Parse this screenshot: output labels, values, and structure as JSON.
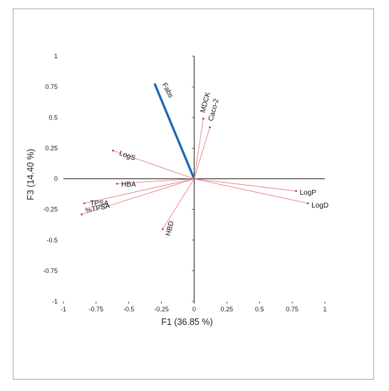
{
  "chart_data": {
    "type": "scatter",
    "subtype": "biplot-vectors",
    "title": "",
    "xlabel": "F1 (36.85 %)",
    "ylabel": "F3 (14.40 %)",
    "xlim": [
      -1,
      1
    ],
    "ylim": [
      -1,
      1
    ],
    "xticks": [
      "-1",
      "-0.75",
      "-0.5",
      "-0.25",
      "0",
      "0.25",
      "0.5",
      "0.75",
      "1"
    ],
    "yticks": [
      "1",
      "0.75",
      "0.5",
      "0.25",
      "0",
      "-0.25",
      "-0.5",
      "-0.75",
      "-1"
    ],
    "xtick_values": [
      -1,
      -0.75,
      -0.5,
      -0.25,
      0,
      0.25,
      0.5,
      0.75,
      1
    ],
    "ytick_values": [
      1,
      0.75,
      0.5,
      0.25,
      0,
      -0.25,
      -0.5,
      -0.75,
      -1
    ],
    "grid": false,
    "vector_color": "#e57373",
    "highlight_color": "#1f66b5",
    "vectors": [
      {
        "name": "Fabs",
        "x": -0.3,
        "y": 0.77,
        "highlight": true
      },
      {
        "name": "MDCK",
        "x": 0.07,
        "y": 0.49,
        "highlight": false
      },
      {
        "name": "Caco-2",
        "x": 0.12,
        "y": 0.42,
        "highlight": false
      },
      {
        "name": "LogS",
        "x": -0.62,
        "y": 0.23,
        "highlight": false
      },
      {
        "name": "HBA",
        "x": -0.59,
        "y": -0.04,
        "highlight": false
      },
      {
        "name": "TPSA",
        "x": -0.84,
        "y": -0.2,
        "highlight": false
      },
      {
        "name": "%TPSA",
        "x": -0.86,
        "y": -0.29,
        "highlight": false
      },
      {
        "name": "HBD",
        "x": -0.24,
        "y": -0.41,
        "highlight": false
      },
      {
        "name": "LogP",
        "x": 0.78,
        "y": -0.1,
        "highlight": false
      },
      {
        "name": "LogD",
        "x": 0.87,
        "y": -0.2,
        "highlight": false
      }
    ]
  }
}
